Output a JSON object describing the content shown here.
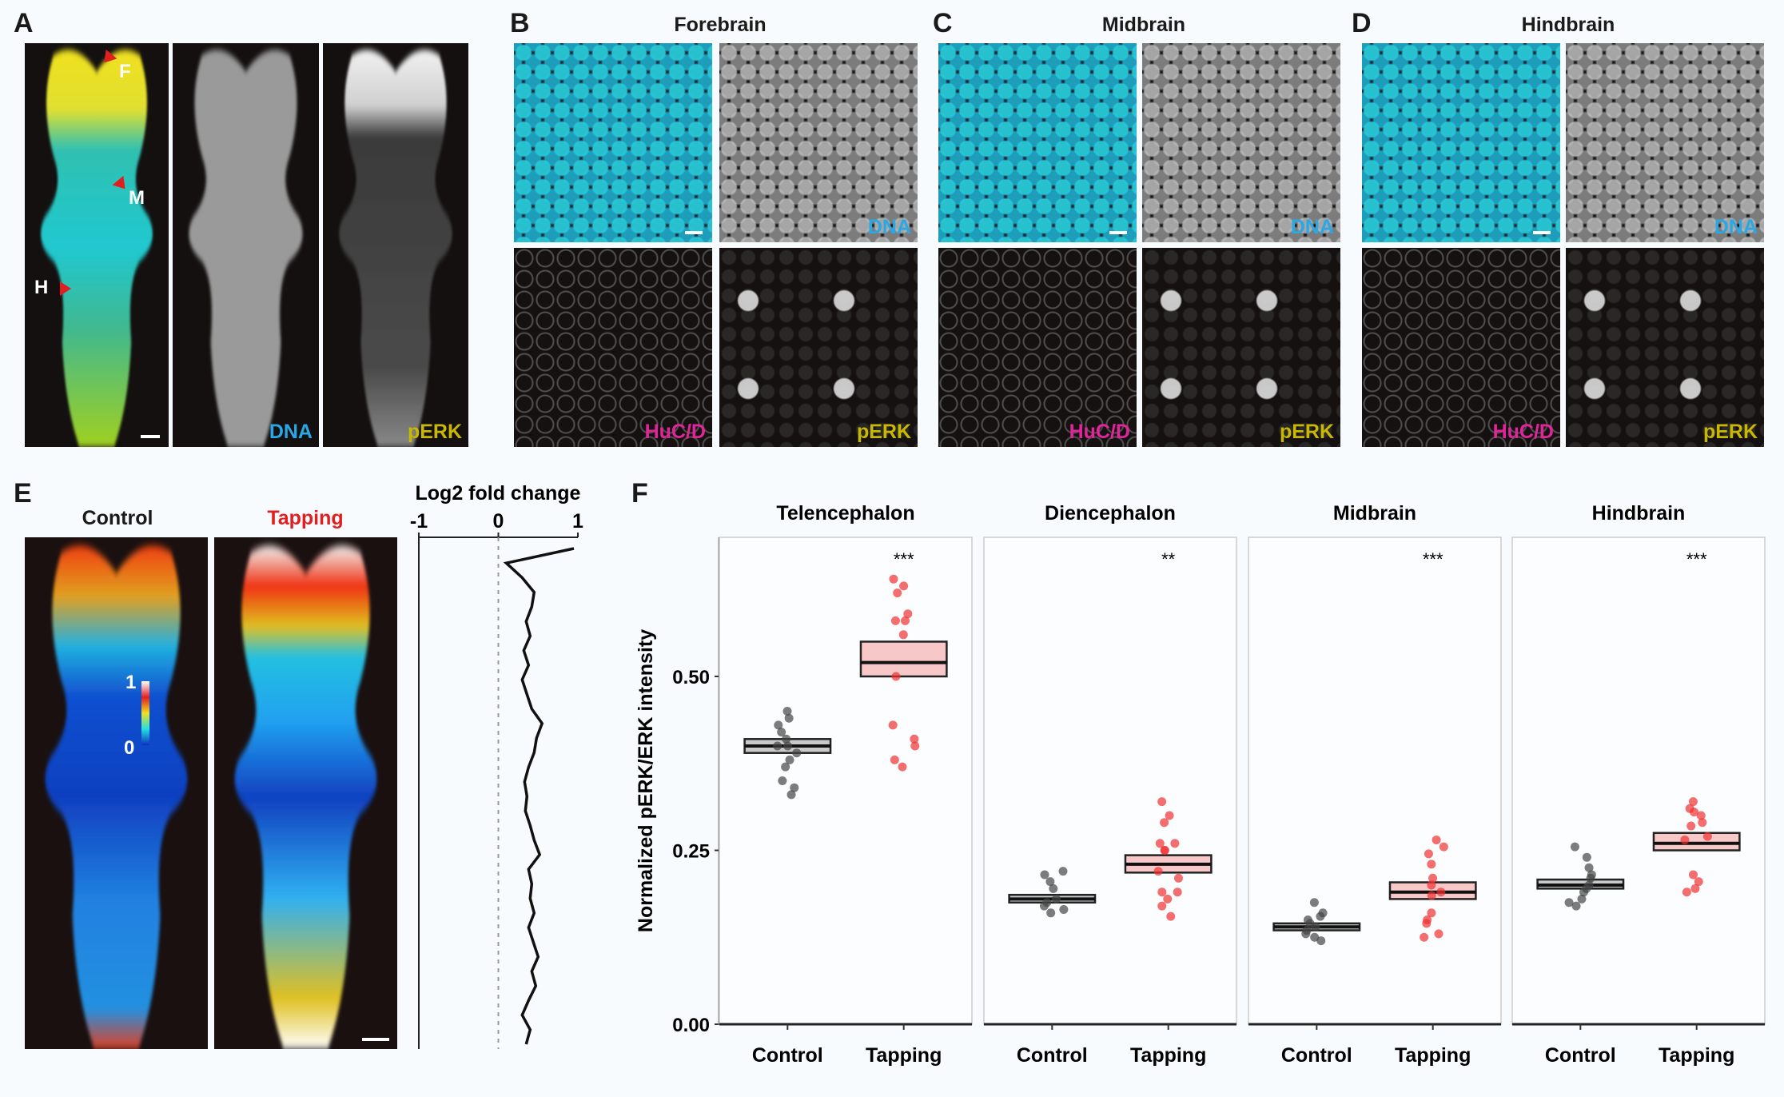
{
  "panels": {
    "A": {
      "label": "A",
      "channels": [
        "DNA",
        "pERK"
      ],
      "markers": [
        "F",
        "M",
        "H"
      ]
    },
    "B": {
      "label": "B",
      "title": "Forebrain",
      "channels": [
        "DNA",
        "HuC/D",
        "pERK"
      ]
    },
    "C": {
      "label": "C",
      "title": "Midbrain",
      "channels": [
        "DNA",
        "HuC/D",
        "pERK"
      ]
    },
    "D": {
      "label": "D",
      "title": "Hindbrain",
      "channels": [
        "DNA",
        "HuC/D",
        "pERK"
      ]
    },
    "E": {
      "label": "E",
      "conditions": [
        "Control",
        "Tapping"
      ],
      "colorbar": {
        "max": "1",
        "min": "0"
      },
      "profile": {
        "title": "Log2 fold change",
        "ticks": [
          "-1",
          "0",
          "1"
        ],
        "xlim": [
          -1,
          1
        ],
        "values": [
          0.95,
          0.1,
          0.3,
          0.45,
          0.42,
          0.35,
          0.4,
          0.32,
          0.38,
          0.3,
          0.36,
          0.42,
          0.55,
          0.48,
          0.45,
          0.38,
          0.33,
          0.36,
          0.34,
          0.4,
          0.45,
          0.52,
          0.38,
          0.42,
          0.4,
          0.45,
          0.38,
          0.44,
          0.5,
          0.42,
          0.47,
          0.38,
          0.3,
          0.4,
          0.35
        ]
      }
    },
    "F": {
      "label": "F"
    }
  },
  "colors": {
    "DNA": "#2aa8e6",
    "pERK": "#c9b800",
    "HuC/D": "#e0259a",
    "tapping": "#e02020",
    "control_box": "#c9c9c9",
    "tapping_box": "#f8c8c8",
    "control_point": "#444444",
    "tapping_point": "#f03030"
  },
  "chart_data": {
    "type": "box-strip",
    "ylabel": "Normalized pERK/ERK intensity",
    "ylim": [
      0,
      0.7
    ],
    "yticks": [
      "0.00",
      "0.25",
      "0.50"
    ],
    "categories": [
      "Control",
      "Tapping"
    ],
    "facets": [
      {
        "name": "Telencephalon",
        "significance": "***",
        "groups": [
          {
            "name": "Control",
            "box": [
              0.39,
              0.4,
              0.41
            ],
            "points": [
              0.45,
              0.44,
              0.43,
              0.42,
              0.41,
              0.4,
              0.4,
              0.39,
              0.38,
              0.37,
              0.35,
              0.34,
              0.33
            ]
          },
          {
            "name": "Tapping",
            "box": [
              0.5,
              0.52,
              0.55
            ],
            "points": [
              0.64,
              0.63,
              0.62,
              0.59,
              0.58,
              0.58,
              0.56,
              0.5,
              0.43,
              0.41,
              0.4,
              0.38,
              0.37
            ]
          }
        ]
      },
      {
        "name": "Diencephalon",
        "significance": "**",
        "groups": [
          {
            "name": "Control",
            "box": [
              0.175,
              0.18,
              0.186
            ],
            "points": [
              0.22,
              0.215,
              0.205,
              0.195,
              0.18,
              0.175,
              0.17,
              0.165,
              0.16
            ]
          },
          {
            "name": "Tapping",
            "box": [
              0.218,
              0.23,
              0.243
            ],
            "points": [
              0.32,
              0.3,
              0.29,
              0.26,
              0.26,
              0.25,
              0.25,
              0.22,
              0.21,
              0.19,
              0.19,
              0.18,
              0.17,
              0.155
            ]
          }
        ]
      },
      {
        "name": "Midbrain",
        "significance": "***",
        "groups": [
          {
            "name": "Control",
            "box": [
              0.135,
              0.14,
              0.145
            ],
            "points": [
              0.175,
              0.16,
              0.155,
              0.15,
              0.145,
              0.14,
              0.135,
              0.13,
              0.125,
              0.12
            ]
          },
          {
            "name": "Tapping",
            "box": [
              0.18,
              0.19,
              0.204
            ],
            "points": [
              0.265,
              0.255,
              0.245,
              0.23,
              0.21,
              0.2,
              0.19,
              0.185,
              0.16,
              0.15,
              0.145,
              0.13,
              0.125
            ]
          }
        ]
      },
      {
        "name": "Hindbrain",
        "significance": "***",
        "groups": [
          {
            "name": "Control",
            "box": [
              0.195,
              0.2,
              0.208
            ],
            "points": [
              0.255,
              0.24,
              0.225,
              0.215,
              0.21,
              0.2,
              0.195,
              0.19,
              0.18,
              0.175,
              0.17
            ]
          },
          {
            "name": "Tapping",
            "box": [
              0.25,
              0.26,
              0.275
            ],
            "points": [
              0.32,
              0.31,
              0.305,
              0.3,
              0.29,
              0.285,
              0.27,
              0.265,
              0.215,
              0.205,
              0.195,
              0.19
            ]
          }
        ]
      }
    ]
  }
}
